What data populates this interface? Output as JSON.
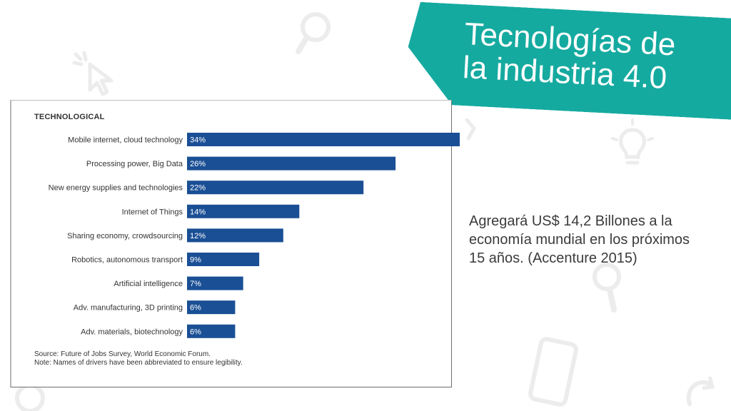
{
  "slide": {
    "title": "Tecnologías de\nla industria 4.0",
    "side_text": "Agregará US$ 14,2 Billones a la economía mundial en los próximos 15 años. (Accenture 2015)"
  },
  "icons": [
    "magnifier-icon",
    "cursor-click-icon",
    "lightbulb-icon",
    "smartphone-icon",
    "refresh-icon"
  ],
  "colors": {
    "banner": "#15aaa0",
    "bar": "#1a4f95",
    "bar_label": "#ffffff"
  },
  "chart_data": {
    "type": "bar",
    "orientation": "horizontal",
    "title": "TECHNOLOGICAL",
    "categories": [
      "Mobile internet, cloud technology",
      "Processing power, Big Data",
      "New energy supplies and technologies",
      "Internet of Things",
      "Sharing economy, crowdsourcing",
      "Robotics, autonomous transport",
      "Artificial intelligence",
      "Adv. manufacturing, 3D printing",
      "Adv. materials, biotechnology"
    ],
    "values": [
      34,
      26,
      22,
      14,
      12,
      9,
      7,
      6,
      6
    ],
    "value_labels": [
      "34%",
      "26%",
      "22%",
      "14%",
      "12%",
      "9%",
      "7%",
      "6%",
      "6%"
    ],
    "xlim": [
      0,
      34
    ],
    "unit": "%",
    "grid": false,
    "notes": [
      "Source: Future of Jobs Survey, World Economic Forum.",
      "Note: Names of drivers have been abbreviated to ensure legibility."
    ]
  }
}
